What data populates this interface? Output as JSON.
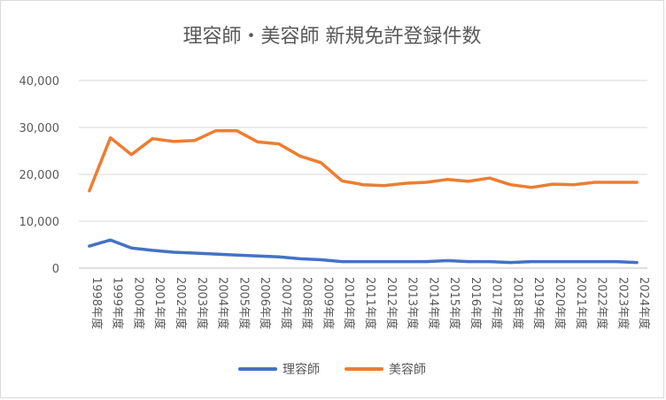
{
  "chart_data": {
    "type": "line",
    "title": "理容師・美容師 新規免許登録件数",
    "xlabel": "",
    "ylabel": "",
    "ylim": [
      0,
      40000
    ],
    "yticks": [
      "0",
      "10,000",
      "20,000",
      "30,000",
      "40,000"
    ],
    "grid": true,
    "legend_position": "bottom",
    "categories": [
      "1998年度",
      "1999年度",
      "2000年度",
      "2001年度",
      "2002年度",
      "2003年度",
      "2004年度",
      "2005年度",
      "2006年度",
      "2007年度",
      "2008年度",
      "2009年度",
      "2010年度",
      "2011年度",
      "2012年度",
      "2013年度",
      "2014年度",
      "2015年度",
      "2016年度",
      "2017年度",
      "2018年度",
      "2019年度",
      "2020年度",
      "2021年度",
      "2022年度",
      "2023年度",
      "2024年度"
    ],
    "series": [
      {
        "name": "理容師",
        "color": "#4472c4",
        "values": [
          4700,
          6000,
          4300,
          3800,
          3400,
          3200,
          3000,
          2800,
          2600,
          2400,
          2000,
          1800,
          1400,
          1400,
          1400,
          1400,
          1400,
          1600,
          1400,
          1400,
          1200,
          1400,
          1400,
          1400,
          1400,
          1400,
          1200
        ]
      },
      {
        "name": "美容師",
        "color": "#ed7d31",
        "values": [
          16500,
          27800,
          24200,
          27600,
          27000,
          27200,
          29300,
          29300,
          26900,
          26500,
          23900,
          22500,
          18600,
          17800,
          17600,
          18100,
          18300,
          18900,
          18500,
          19200,
          17800,
          17200,
          17900,
          17800,
          18300,
          18300,
          18300
        ]
      }
    ]
  }
}
